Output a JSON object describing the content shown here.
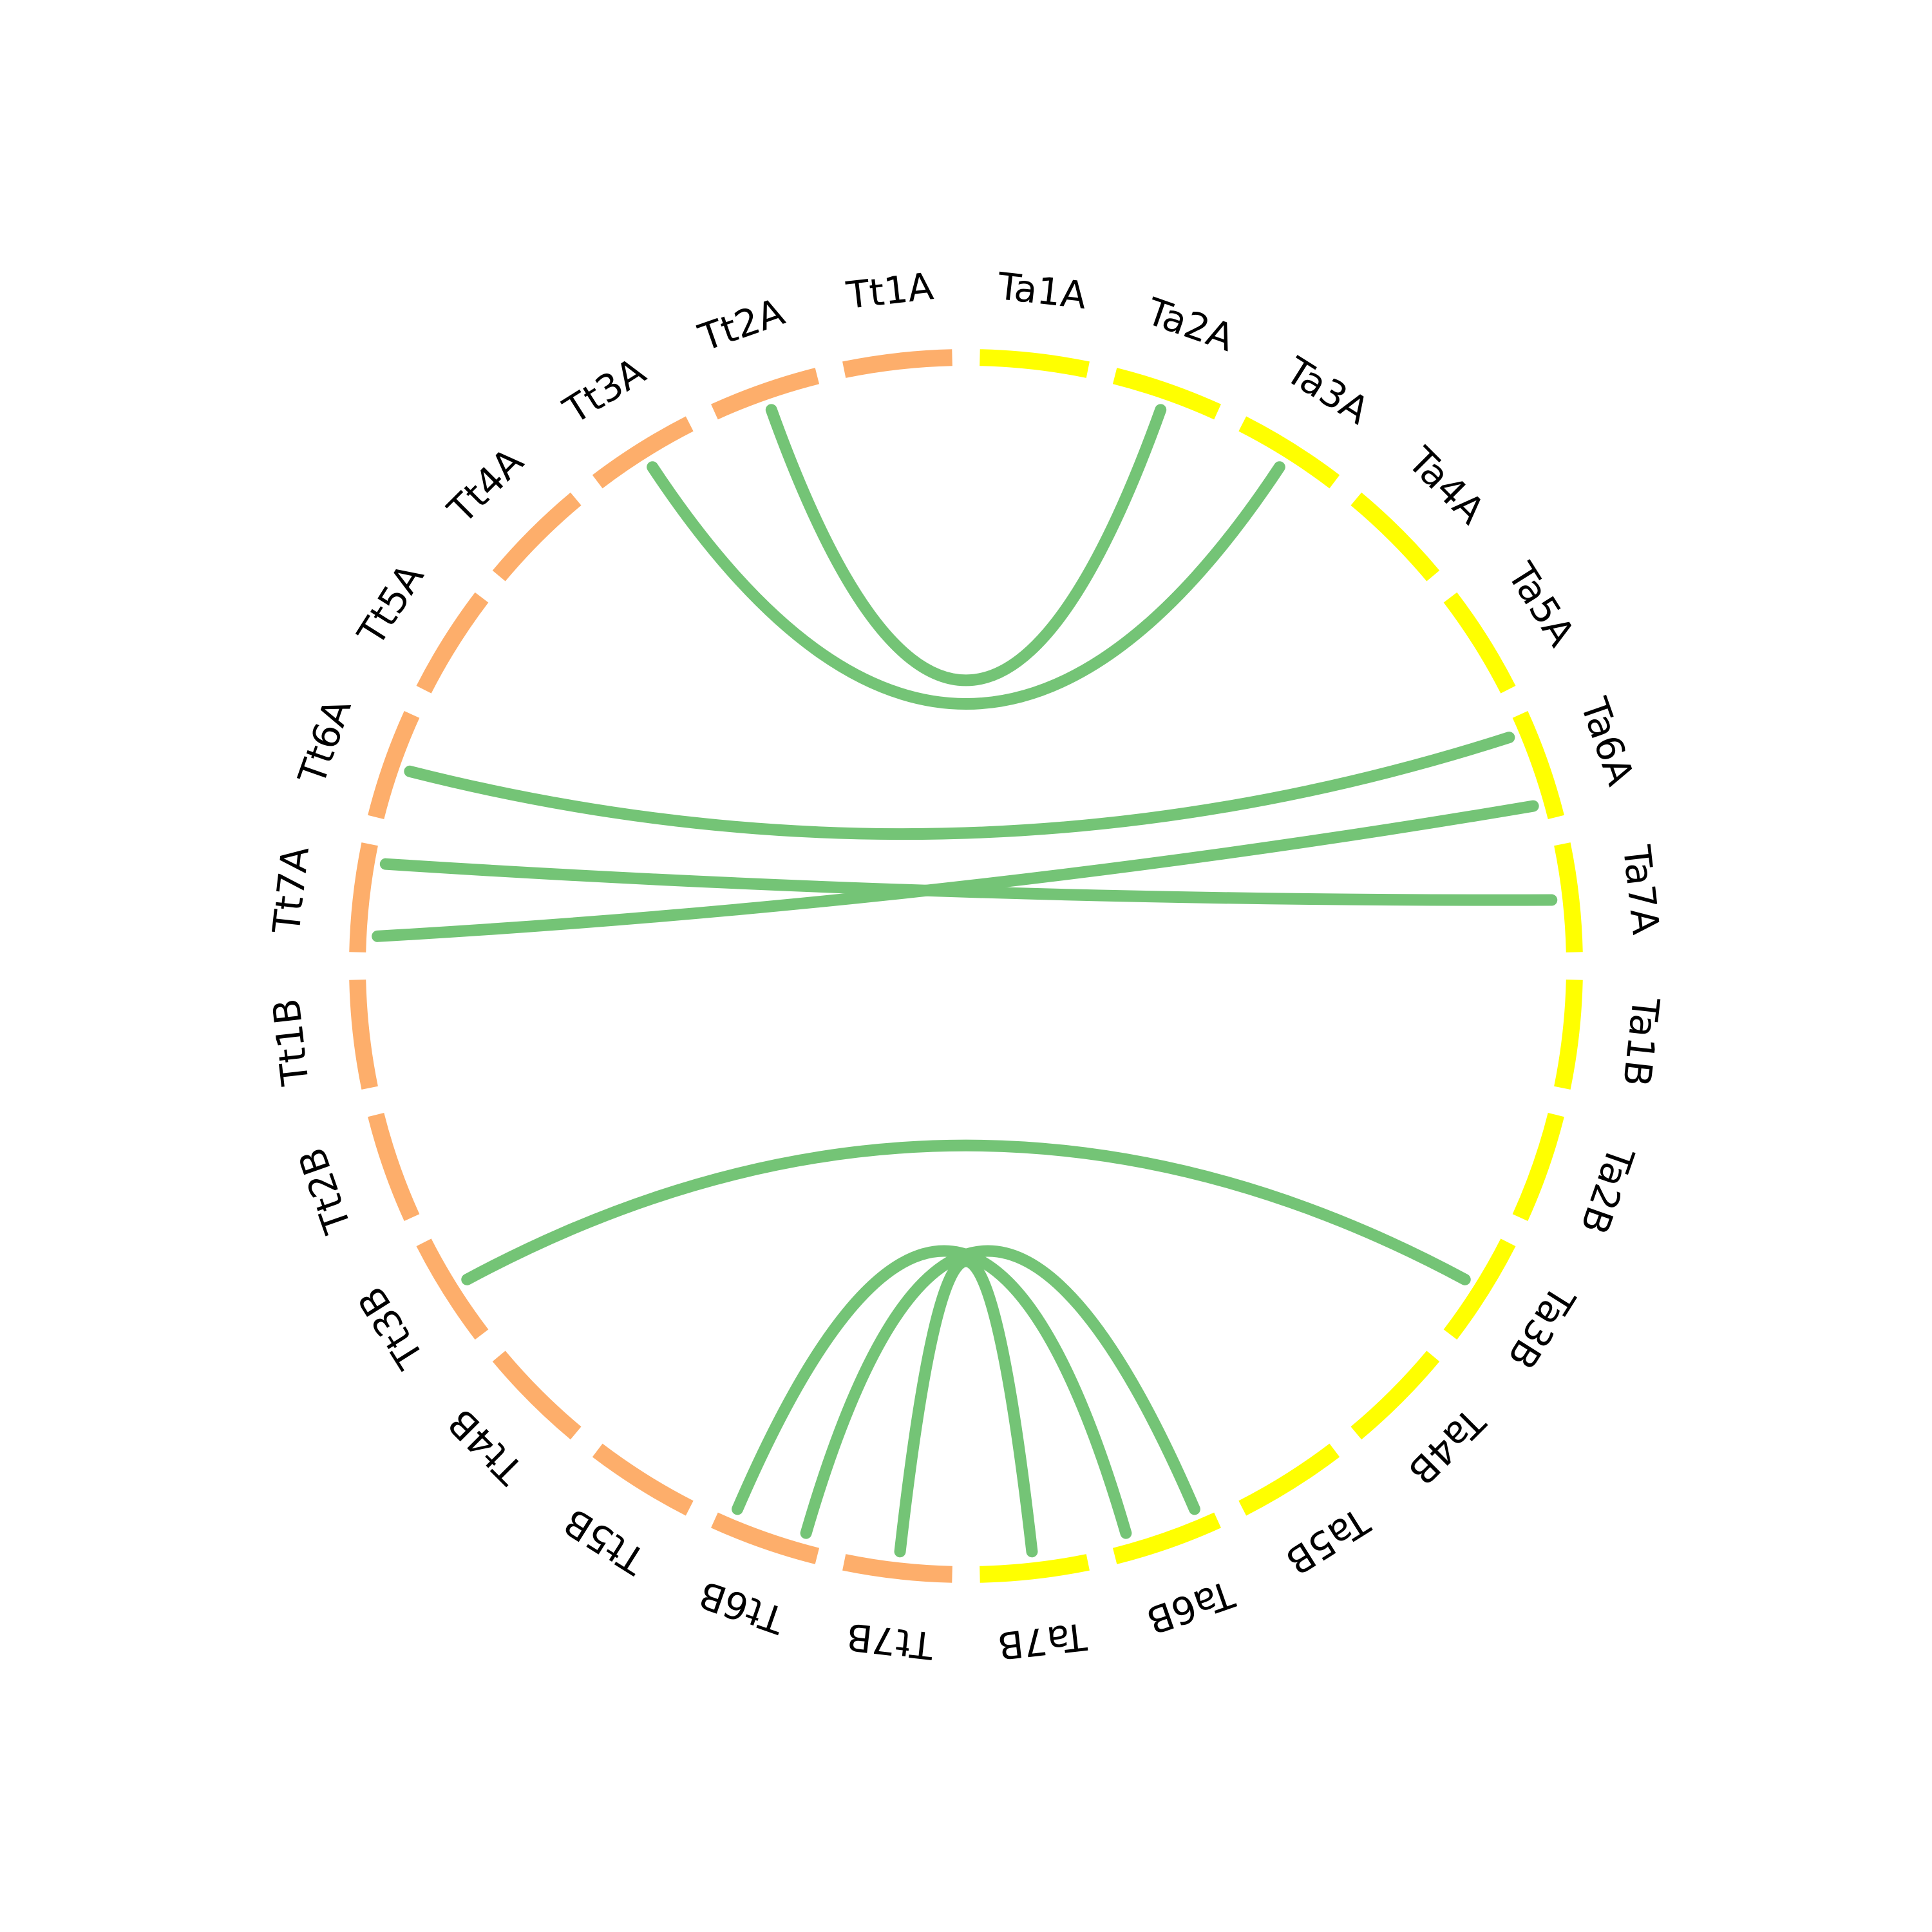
{
  "colors": {
    "tt_segment": "#fdae6b",
    "ta_segment": "#ffff00",
    "link": "#74c476",
    "label": "#000000",
    "background": "#ffffff"
  },
  "segments": [
    {
      "id": "Tt1A",
      "label": "Tt1A",
      "group": "Tt"
    },
    {
      "id": "Tt2A",
      "label": "Tt2A",
      "group": "Tt"
    },
    {
      "id": "Tt3A",
      "label": "Tt3A",
      "group": "Tt"
    },
    {
      "id": "Tt4A",
      "label": "Tt4A",
      "group": "Tt"
    },
    {
      "id": "Tt5A",
      "label": "Tt5A",
      "group": "Tt"
    },
    {
      "id": "Tt6A",
      "label": "Tt6A",
      "group": "Tt"
    },
    {
      "id": "Tt7A",
      "label": "Tt7A",
      "group": "Tt"
    },
    {
      "id": "Tt1B",
      "label": "Tt1B",
      "group": "Tt"
    },
    {
      "id": "Tt2B",
      "label": "Tt2B",
      "group": "Tt"
    },
    {
      "id": "Tt3B",
      "label": "Tt3B",
      "group": "Tt"
    },
    {
      "id": "Tt4B",
      "label": "Tt4B",
      "group": "Tt"
    },
    {
      "id": "Tt5B",
      "label": "Tt5B",
      "group": "Tt"
    },
    {
      "id": "Tt6B",
      "label": "Tt6B",
      "group": "Tt"
    },
    {
      "id": "Tt7B",
      "label": "Tt7B",
      "group": "Tt"
    },
    {
      "id": "Ta7B",
      "label": "Ta7B",
      "group": "Ta"
    },
    {
      "id": "Ta6B",
      "label": "Ta6B",
      "group": "Ta"
    },
    {
      "id": "Ta5B",
      "label": "Ta5B",
      "group": "Ta"
    },
    {
      "id": "Ta4B",
      "label": "Ta4B",
      "group": "Ta"
    },
    {
      "id": "Ta3B",
      "label": "Ta3B",
      "group": "Ta"
    },
    {
      "id": "Ta2B",
      "label": "Ta2B",
      "group": "Ta"
    },
    {
      "id": "Ta1B",
      "label": "Ta1B",
      "group": "Ta"
    },
    {
      "id": "Ta7A",
      "label": "Ta7A",
      "group": "Ta"
    },
    {
      "id": "Ta6A",
      "label": "Ta6A",
      "group": "Ta"
    },
    {
      "id": "Ta5A",
      "label": "Ta5A",
      "group": "Ta"
    },
    {
      "id": "Ta4A",
      "label": "Ta4A",
      "group": "Ta"
    },
    {
      "id": "Ta3A",
      "label": "Ta3A",
      "group": "Ta"
    },
    {
      "id": "Ta2A",
      "label": "Ta2A",
      "group": "Ta"
    },
    {
      "id": "Ta1A",
      "label": "Ta1A",
      "group": "Ta"
    }
  ],
  "links": [
    {
      "from": "Tt2A",
      "to": "Ta2A"
    },
    {
      "from": "Tt3A",
      "to": "Ta3A"
    },
    {
      "from": "Tt6A",
      "to": "Ta6A"
    },
    {
      "from": "Tt7A",
      "to": "Ta6A"
    },
    {
      "from": "Tt7A",
      "to": "Ta7A"
    },
    {
      "from": "Tt3B",
      "to": "Ta3B"
    },
    {
      "from": "Tt6B",
      "to": "Ta6B"
    },
    {
      "from": "Tt6B",
      "to": "Ta6B"
    },
    {
      "from": "Tt7B",
      "to": "Ta7B"
    }
  ]
}
